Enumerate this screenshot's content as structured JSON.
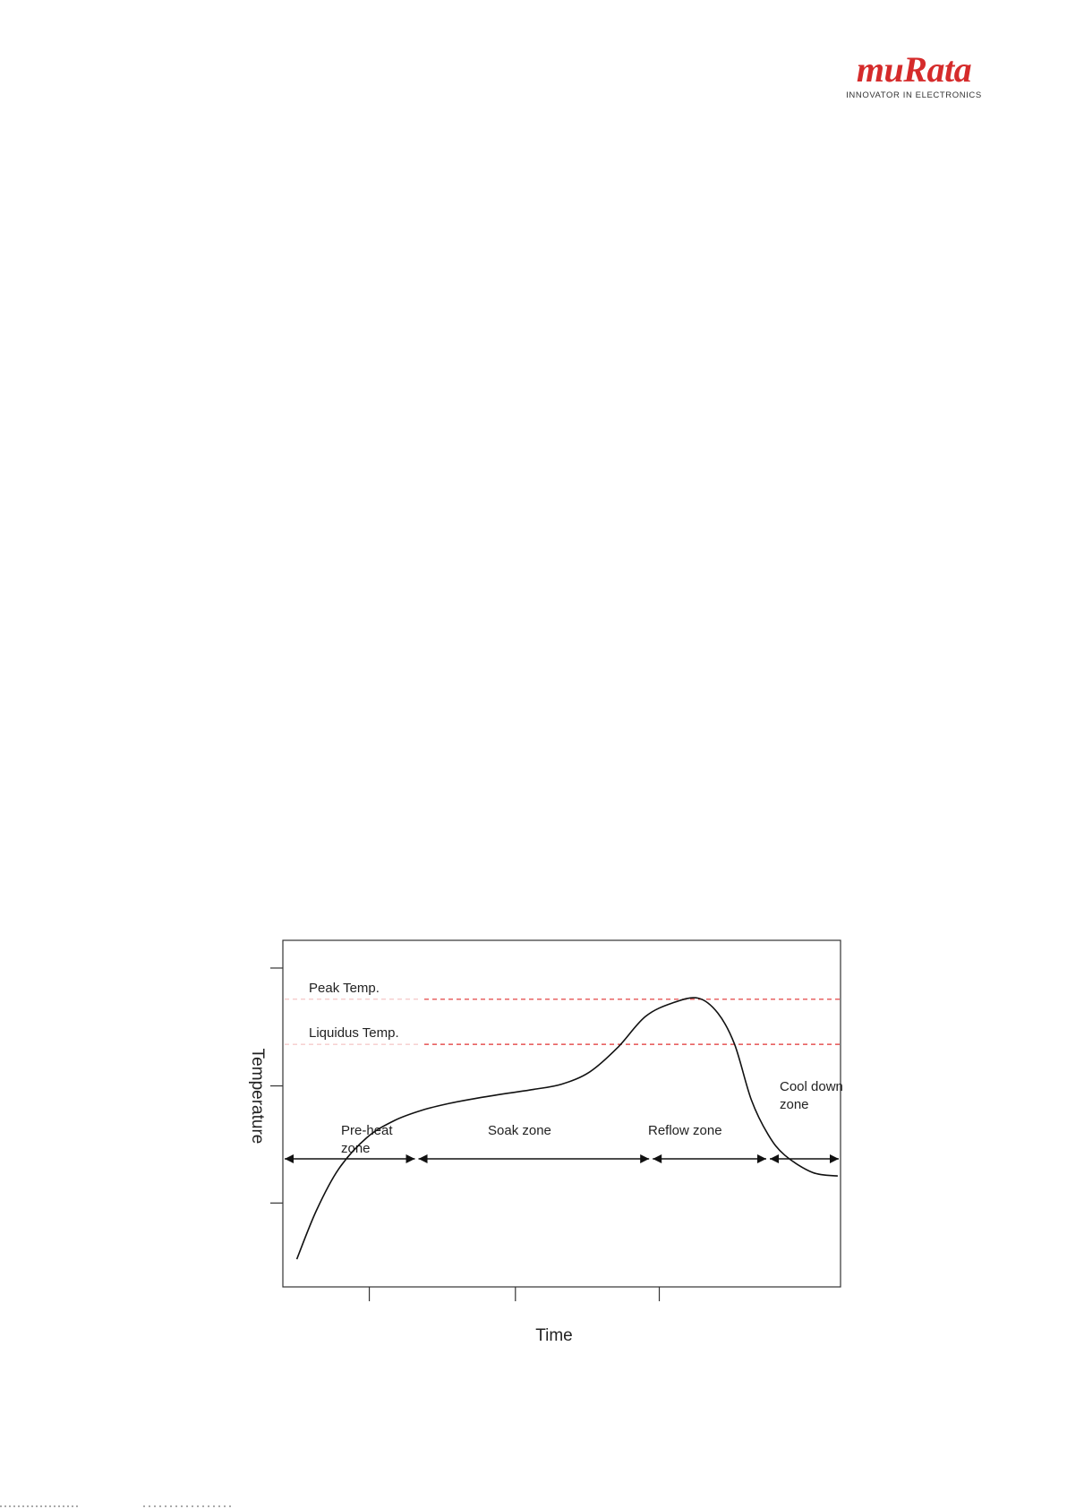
{
  "logo": {
    "wordmark": "muRata",
    "tagline": "INNOVATOR IN ELECTRONICS",
    "color": "#d52b2b"
  },
  "chart_data": {
    "type": "line",
    "title": "",
    "xlabel": "Time",
    "ylabel": "Temperature",
    "xlim": [
      0,
      10
    ],
    "ylim": [
      0,
      10
    ],
    "grid": false,
    "x_ticks": [
      1.55,
      4.17,
      6.75
    ],
    "y_ticks": [
      2.42,
      5.8,
      9.2
    ],
    "series": [
      {
        "color": "#111111",
        "points": [
          [
            0.25,
            0.8
          ],
          [
            0.6,
            2.2
          ],
          [
            1.0,
            3.4
          ],
          [
            1.5,
            4.3
          ],
          [
            2.0,
            4.8
          ],
          [
            2.5,
            5.1
          ],
          [
            3.0,
            5.3
          ],
          [
            3.5,
            5.45
          ],
          [
            4.0,
            5.58
          ],
          [
            4.5,
            5.7
          ],
          [
            5.0,
            5.85
          ],
          [
            5.5,
            6.2
          ],
          [
            6.0,
            6.9
          ],
          [
            6.5,
            7.8
          ],
          [
            7.0,
            8.2
          ],
          [
            7.45,
            8.33
          ],
          [
            7.8,
            7.9
          ],
          [
            8.1,
            7.0
          ],
          [
            8.4,
            5.4
          ],
          [
            8.7,
            4.4
          ],
          [
            9.0,
            3.8
          ],
          [
            9.5,
            3.3
          ],
          [
            9.95,
            3.2
          ]
        ]
      }
    ],
    "reference_lines": [
      {
        "label": "Peak Temp.",
        "y": 8.3,
        "color": "#e03030"
      },
      {
        "label": "Liquidus Temp.",
        "y": 7.0,
        "color": "#e03030"
      }
    ],
    "zones": [
      {
        "label_lines": [
          "Pre-heat",
          "zone"
        ],
        "x_start": 0,
        "x_end": 2.4
      },
      {
        "label_lines": [
          "Soak zone"
        ],
        "x_start": 2.4,
        "x_end": 6.6
      },
      {
        "label_lines": [
          "Reflow zone"
        ],
        "x_start": 6.6,
        "x_end": 8.7
      },
      {
        "label_lines": [
          "Cool down",
          "zone"
        ],
        "x_start": 8.7,
        "x_end": 10
      }
    ]
  }
}
